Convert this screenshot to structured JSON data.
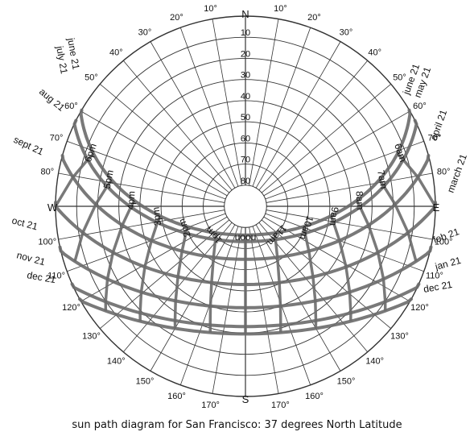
{
  "caption": "sun path diagram for San Francisco: 37 degrees North Latitude",
  "compass": {
    "north": "N",
    "south": "S",
    "east": "E",
    "west": "W"
  },
  "altitude_labels": [
    "10",
    "20",
    "30",
    "40",
    "50",
    "60",
    "70",
    "80"
  ],
  "azimuth_labels": [
    {
      "value": "10",
      "deg": 10
    },
    {
      "value": "20",
      "deg": 20
    },
    {
      "value": "30",
      "deg": 30
    },
    {
      "value": "40",
      "deg": 40
    },
    {
      "value": "50",
      "deg": 50
    },
    {
      "value": "60",
      "deg": 60
    },
    {
      "value": "70",
      "deg": 70
    },
    {
      "value": "80",
      "deg": 80
    },
    {
      "value": "100",
      "deg": 100
    },
    {
      "value": "110",
      "deg": 110
    },
    {
      "value": "120",
      "deg": 120
    },
    {
      "value": "130",
      "deg": 130
    },
    {
      "value": "140",
      "deg": 140
    },
    {
      "value": "150",
      "deg": 150
    },
    {
      "value": "160",
      "deg": 160
    },
    {
      "value": "170",
      "deg": 170
    },
    {
      "value": "170",
      "deg": 190
    },
    {
      "value": "160",
      "deg": 200
    },
    {
      "value": "150",
      "deg": 210
    },
    {
      "value": "140",
      "deg": 220
    },
    {
      "value": "130",
      "deg": 230
    },
    {
      "value": "120",
      "deg": 240
    },
    {
      "value": "110",
      "deg": 250
    },
    {
      "value": "100",
      "deg": 260
    },
    {
      "value": "80",
      "deg": 280
    },
    {
      "value": "70",
      "deg": 290
    },
    {
      "value": "60",
      "deg": 300
    },
    {
      "value": "50",
      "deg": 310
    },
    {
      "value": "40",
      "deg": 320
    },
    {
      "value": "30",
      "deg": 330
    },
    {
      "value": "20",
      "deg": 340
    },
    {
      "value": "10",
      "deg": 350
    }
  ],
  "hour_labels": [
    {
      "label": "6am",
      "az": 112
    },
    {
      "label": "7am",
      "az": 110
    },
    {
      "label": "8am",
      "az": 102
    },
    {
      "label": "9am",
      "az": 92
    },
    {
      "label": "10am",
      "az": 70
    },
    {
      "label": "11am",
      "az": 45
    },
    {
      "label": "noon",
      "az": 0
    },
    {
      "label": "1pm",
      "az": -45
    },
    {
      "label": "2pm",
      "az": -70
    },
    {
      "label": "3pm",
      "az": -92
    },
    {
      "label": "4pm",
      "az": -102
    },
    {
      "label": "5pm",
      "az": -110
    },
    {
      "label": "6pm",
      "az": -112
    }
  ],
  "date_labels_left": [
    "june 21",
    "july 21",
    "aug 21",
    "sept 21",
    "oct 21",
    "nov 21",
    "dec 21"
  ],
  "date_labels_right": [
    "june 21",
    "may 21",
    "april 21",
    "march 21",
    "feb 21",
    "jan 21",
    "dec 21"
  ],
  "sun_paths": [
    {
      "name": "june 21",
      "decl": 23.4
    },
    {
      "name": "may/july 21",
      "decl": 20.3
    },
    {
      "name": "april/aug 21",
      "decl": 11.9
    },
    {
      "name": "march/sept 21",
      "decl": 0
    },
    {
      "name": "feb/oct 21",
      "decl": -11.0
    },
    {
      "name": "jan/nov 21",
      "decl": -19.9
    },
    {
      "name": "dec 21",
      "decl": -23.4
    }
  ],
  "latitude_deg": 37,
  "colors": {
    "grid": "#333333",
    "path": "#6a6a6a",
    "text": "#111111"
  }
}
